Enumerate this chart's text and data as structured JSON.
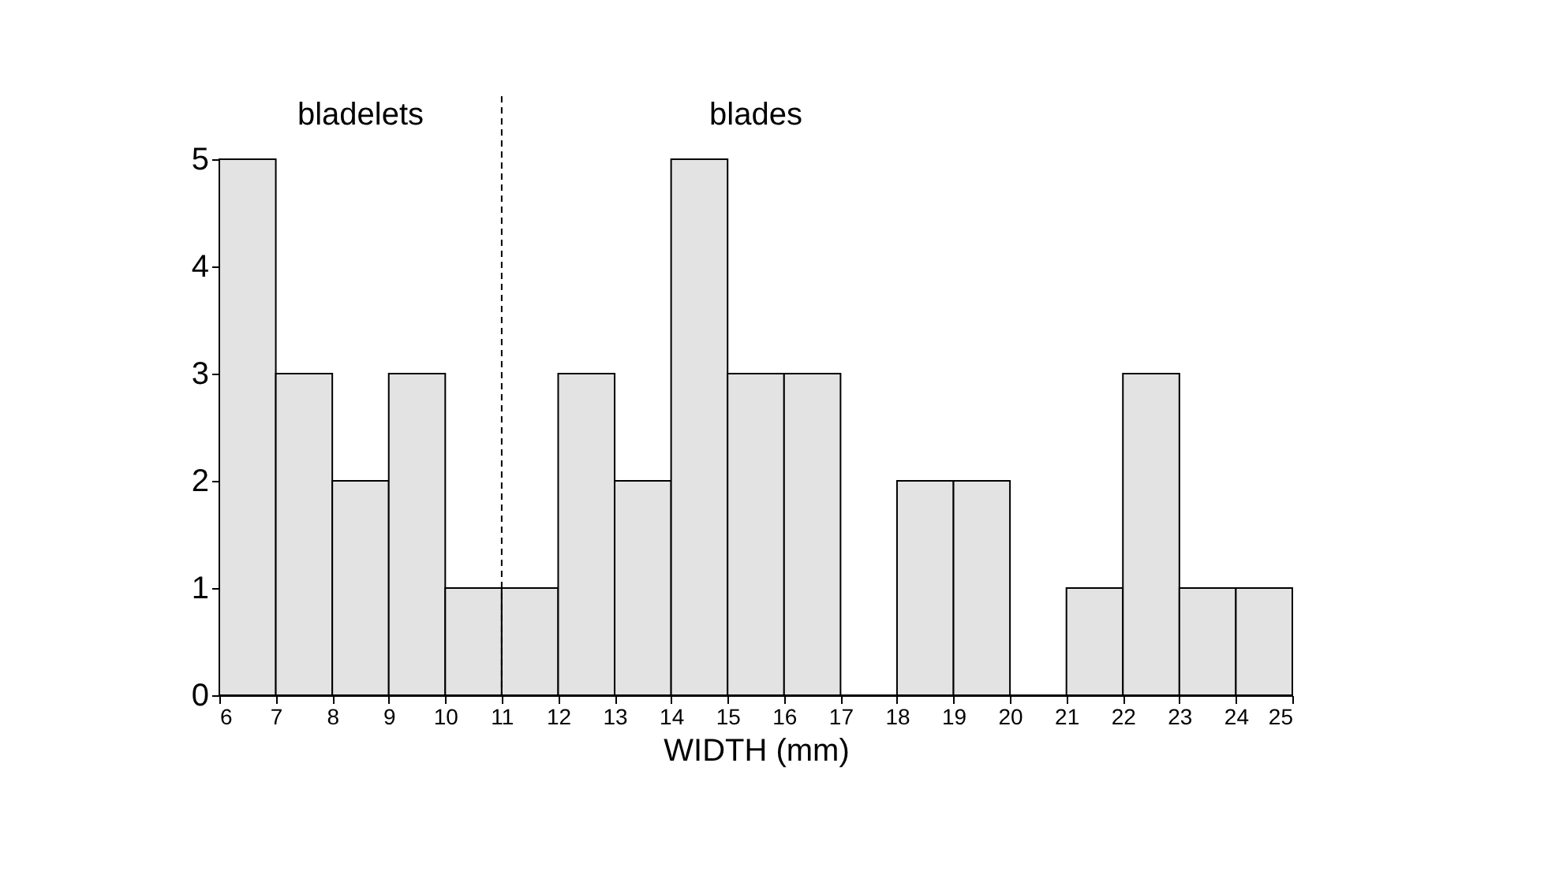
{
  "chart_data": {
    "type": "histogram",
    "xlabel": "WIDTH (mm)",
    "bins": [
      6,
      7,
      8,
      9,
      10,
      11,
      12,
      13,
      14,
      15,
      16,
      17,
      18,
      19,
      20,
      21,
      22,
      23,
      24,
      25
    ],
    "values": [
      5,
      3,
      2,
      3,
      1,
      1,
      3,
      2,
      5,
      3,
      3,
      0,
      2,
      2,
      0,
      1,
      3,
      1,
      1
    ],
    "color": "#e3e3e3",
    "xlim": [
      6,
      25
    ],
    "xticks": [
      6,
      7,
      8,
      9,
      10,
      11,
      12,
      13,
      14,
      15,
      16,
      17,
      18,
      19,
      20,
      21,
      22,
      23,
      24,
      25
    ],
    "ylim": [
      0,
      5
    ],
    "yticks": [
      0,
      1,
      2,
      3,
      4,
      5
    ],
    "ref_lines": [
      {
        "axis": "x",
        "value": 11,
        "line_style": "dashed"
      }
    ],
    "annotations": [
      "bladelets",
      "blades"
    ],
    "grid": false
  }
}
